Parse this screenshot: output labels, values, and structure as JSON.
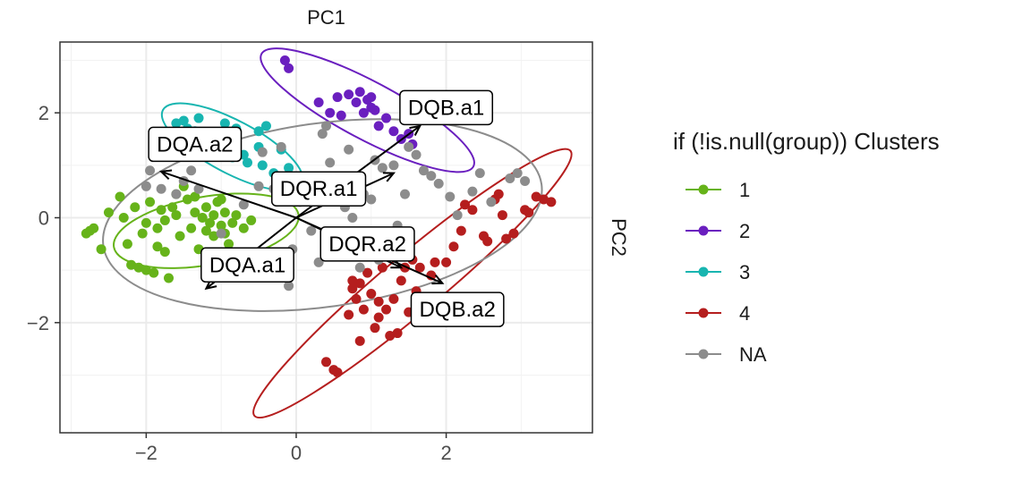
{
  "chart_data": {
    "type": "scatter",
    "title": "PC1",
    "xlabel": "",
    "ylabel": "PC2",
    "xlim": [
      -3.15,
      3.95
    ],
    "ylim": [
      -4.1,
      3.35
    ],
    "x_ticks": [
      -2,
      0,
      2
    ],
    "y_ticks": [
      -2,
      0,
      2
    ],
    "grid": true,
    "legend": {
      "title": "if (!is.null(group)) Clusters",
      "placement": "right",
      "entries": [
        {
          "label": "1",
          "color": "#66B31A"
        },
        {
          "label": "2",
          "color": "#6A1FBF"
        },
        {
          "label": "3",
          "color": "#18B5B0"
        },
        {
          "label": "4",
          "color": "#B51E1E"
        },
        {
          "label": "NA",
          "color": "#8C8C8C"
        }
      ]
    },
    "series": [
      {
        "name": "1",
        "color": "#66B31A",
        "ellipse": {
          "cx": -1.2,
          "cy": -0.25,
          "rx": 1.25,
          "ry": 0.65,
          "angle": 10
        },
        "points": [
          [
            -2.8,
            -0.3
          ],
          [
            -2.75,
            -0.25
          ],
          [
            -2.7,
            -0.2
          ],
          [
            -2.6,
            -0.6
          ],
          [
            -2.5,
            0.1
          ],
          [
            -2.3,
            0.0
          ],
          [
            -2.2,
            -0.9
          ],
          [
            -2.1,
            -0.95
          ],
          [
            -2.05,
            -0.3
          ],
          [
            -2.0,
            -1.0
          ],
          [
            -1.95,
            0.3
          ],
          [
            -1.9,
            -1.05
          ],
          [
            -1.85,
            -0.2
          ],
          [
            -1.8,
            0.15
          ],
          [
            -1.75,
            -0.65
          ],
          [
            -1.7,
            -1.15
          ],
          [
            -1.65,
            0.2
          ],
          [
            -1.6,
            0.05
          ],
          [
            -1.55,
            -0.35
          ],
          [
            -1.5,
            0.6
          ],
          [
            -1.45,
            0.35
          ],
          [
            -1.4,
            -0.2
          ],
          [
            -1.35,
            0.1
          ],
          [
            -1.3,
            -0.6
          ],
          [
            -1.25,
            0.0
          ],
          [
            -1.2,
            0.2
          ],
          [
            -1.15,
            -0.1
          ],
          [
            -1.1,
            0.05
          ],
          [
            -1.05,
            0.3
          ],
          [
            -1.0,
            -0.15
          ],
          [
            -0.95,
            0.1
          ],
          [
            -0.9,
            -0.5
          ],
          [
            -0.85,
            -0.1
          ],
          [
            -0.8,
            0.05
          ],
          [
            -0.7,
            -0.2
          ],
          [
            -0.6,
            -0.05
          ],
          [
            -2.35,
            0.4
          ],
          [
            -2.25,
            -0.5
          ],
          [
            -2.0,
            -0.1
          ],
          [
            -1.75,
            -0.05
          ],
          [
            -1.6,
            0.45
          ],
          [
            -1.35,
            0.4
          ],
          [
            -1.2,
            -0.25
          ],
          [
            -1.1,
            -0.35
          ],
          [
            -1.0,
            0.35
          ],
          [
            -0.95,
            -0.3
          ],
          [
            -1.85,
            -0.55
          ],
          [
            -2.15,
            0.2
          ]
        ]
      },
      {
        "name": "2",
        "color": "#6A1FBF",
        "ellipse": {
          "cx": 0.95,
          "cy": 2.05,
          "rx": 1.6,
          "ry": 0.55,
          "angle": -28
        },
        "points": [
          [
            -0.15,
            3.0
          ],
          [
            -0.1,
            2.85
          ],
          [
            0.3,
            2.2
          ],
          [
            0.45,
            2.0
          ],
          [
            0.55,
            2.3
          ],
          [
            0.6,
            1.95
          ],
          [
            0.8,
            2.2
          ],
          [
            0.85,
            2.4
          ],
          [
            0.9,
            2.0
          ],
          [
            0.95,
            2.25
          ],
          [
            1.0,
            2.1
          ],
          [
            1.05,
            2.05
          ],
          [
            1.1,
            1.75
          ],
          [
            1.3,
            1.65
          ],
          [
            1.4,
            1.5
          ],
          [
            1.5,
            1.6
          ],
          [
            1.55,
            1.4
          ],
          [
            1.0,
            2.3
          ],
          [
            1.2,
            1.9
          ],
          [
            0.7,
            2.35
          ]
        ]
      },
      {
        "name": "3",
        "color": "#18B5B0",
        "ellipse": {
          "cx": -0.85,
          "cy": 1.35,
          "rx": 1.05,
          "ry": 0.5,
          "angle": -28
        },
        "points": [
          [
            -1.6,
            1.8
          ],
          [
            -1.5,
            1.85
          ],
          [
            -1.45,
            1.7
          ],
          [
            -1.4,
            1.5
          ],
          [
            -1.35,
            1.65
          ],
          [
            -1.3,
            1.9
          ],
          [
            -1.2,
            1.35
          ],
          [
            -1.1,
            1.5
          ],
          [
            -1.05,
            1.25
          ],
          [
            -1.0,
            1.55
          ],
          [
            -0.95,
            1.8
          ],
          [
            -0.9,
            1.4
          ],
          [
            -0.85,
            1.15
          ],
          [
            -0.8,
            1.7
          ],
          [
            -0.7,
            1.2
          ],
          [
            -0.65,
            1.05
          ],
          [
            -0.5,
            1.35
          ],
          [
            -0.45,
            1.0
          ],
          [
            -0.4,
            1.75
          ],
          [
            -0.3,
            0.85
          ],
          [
            -0.2,
            1.3
          ],
          [
            -0.1,
            0.95
          ],
          [
            -0.5,
            1.65
          ],
          [
            -1.15,
            1.2
          ]
        ]
      },
      {
        "name": "4",
        "color": "#B51E1E",
        "ellipse": {
          "cx": 1.55,
          "cy": -1.25,
          "rx": 2.75,
          "ry": 0.55,
          "angle": 40
        },
        "points": [
          [
            0.4,
            -2.75
          ],
          [
            0.5,
            -2.9
          ],
          [
            0.55,
            -2.95
          ],
          [
            0.7,
            -1.85
          ],
          [
            0.75,
            -1.35
          ],
          [
            0.8,
            -1.55
          ],
          [
            0.85,
            -1.25
          ],
          [
            0.9,
            -1.75
          ],
          [
            0.95,
            -1.05
          ],
          [
            1.0,
            -1.45
          ],
          [
            1.05,
            -2.1
          ],
          [
            1.1,
            -1.9
          ],
          [
            1.15,
            -0.95
          ],
          [
            1.2,
            -1.75
          ],
          [
            1.25,
            -2.25
          ],
          [
            1.3,
            -1.55
          ],
          [
            1.35,
            -2.2
          ],
          [
            1.4,
            -1.2
          ],
          [
            1.45,
            -0.95
          ],
          [
            1.5,
            -1.8
          ],
          [
            1.55,
            -0.8
          ],
          [
            1.6,
            -1.4
          ],
          [
            1.65,
            -0.95
          ],
          [
            1.8,
            -1.1
          ],
          [
            1.85,
            -0.85
          ],
          [
            2.0,
            -0.85
          ],
          [
            2.1,
            -0.55
          ],
          [
            2.2,
            -0.25
          ],
          [
            2.25,
            0.25
          ],
          [
            2.35,
            0.15
          ],
          [
            2.5,
            -0.35
          ],
          [
            2.55,
            -0.45
          ],
          [
            2.65,
            0.35
          ],
          [
            2.7,
            0.45
          ],
          [
            2.75,
            0.05
          ],
          [
            2.8,
            -0.4
          ],
          [
            2.9,
            -0.3
          ],
          [
            3.05,
            0.15
          ],
          [
            3.1,
            0.1
          ],
          [
            3.2,
            0.4
          ],
          [
            3.3,
            0.35
          ],
          [
            3.4,
            0.3
          ],
          [
            0.85,
            -2.35
          ],
          [
            0.75,
            -1.2
          ],
          [
            1.3,
            -0.6
          ],
          [
            1.1,
            -1.6
          ]
        ]
      },
      {
        "name": "NA",
        "color": "#8C8C8C",
        "ellipse": {
          "cx": 0.35,
          "cy": 0.05,
          "rx": 2.95,
          "ry": 1.75,
          "angle": 8
        },
        "points": [
          [
            -2.0,
            0.6
          ],
          [
            -1.95,
            0.9
          ],
          [
            -1.8,
            0.55
          ],
          [
            -1.6,
            0.45
          ],
          [
            -1.5,
            0.7
          ],
          [
            -1.4,
            0.9
          ],
          [
            -1.3,
            0.55
          ],
          [
            -1.0,
            -0.3
          ],
          [
            -0.7,
            0.25
          ],
          [
            -0.5,
            0.6
          ],
          [
            -0.45,
            1.25
          ],
          [
            -0.3,
            0.55
          ],
          [
            -0.2,
            1.35
          ],
          [
            -0.1,
            -1.3
          ],
          [
            -0.05,
            -0.6
          ],
          [
            0.0,
            0.4
          ],
          [
            0.05,
            0.3
          ],
          [
            0.2,
            -0.25
          ],
          [
            0.3,
            -0.85
          ],
          [
            0.35,
            1.6
          ],
          [
            0.4,
            1.75
          ],
          [
            0.45,
            1.05
          ],
          [
            0.55,
            -0.45
          ],
          [
            0.6,
            0.55
          ],
          [
            0.65,
            0.2
          ],
          [
            0.7,
            1.3
          ],
          [
            0.75,
            0.0
          ],
          [
            0.8,
            0.75
          ],
          [
            0.85,
            -0.95
          ],
          [
            0.9,
            0.45
          ],
          [
            1.0,
            0.35
          ],
          [
            1.05,
            1.1
          ],
          [
            1.1,
            -0.8
          ],
          [
            1.15,
            0.95
          ],
          [
            1.25,
            -0.5
          ],
          [
            1.3,
            1.0
          ],
          [
            1.4,
            -0.3
          ],
          [
            1.5,
            1.35
          ],
          [
            1.6,
            1.2
          ],
          [
            1.7,
            0.9
          ],
          [
            1.8,
            0.8
          ],
          [
            1.9,
            0.65
          ],
          [
            2.05,
            0.4
          ],
          [
            2.15,
            0.05
          ],
          [
            2.35,
            0.5
          ],
          [
            2.45,
            0.85
          ],
          [
            2.6,
            0.3
          ],
          [
            2.85,
            0.75
          ],
          [
            2.95,
            0.85
          ],
          [
            3.05,
            0.7
          ],
          [
            1.35,
            -0.15
          ],
          [
            1.45,
            0.45
          ],
          [
            0.45,
            -0.55
          ]
        ]
      }
    ],
    "loadings": [
      {
        "label": "DQA.a2",
        "x": -1.8,
        "y": 0.88,
        "label_x": -1.35,
        "label_y": 1.4
      },
      {
        "label": "DQA.a1",
        "x": -1.2,
        "y": -1.35,
        "label_x": -0.65,
        "label_y": -0.9
      },
      {
        "label": "DQR.a1",
        "x": 1.3,
        "y": 0.85,
        "label_x": 0.3,
        "label_y": 0.55
      },
      {
        "label": "DQR.a2",
        "x": 1.4,
        "y": -0.95,
        "label_x": 0.95,
        "label_y": -0.5
      },
      {
        "label": "DQB.a1",
        "x": 1.65,
        "y": 1.75,
        "label_x": 2.0,
        "label_y": 2.1
      },
      {
        "label": "DQB.a2",
        "x": 1.95,
        "y": -1.25,
        "label_x": 2.15,
        "label_y": -1.75
      }
    ],
    "arrow_origin": [
      0,
      0
    ]
  }
}
